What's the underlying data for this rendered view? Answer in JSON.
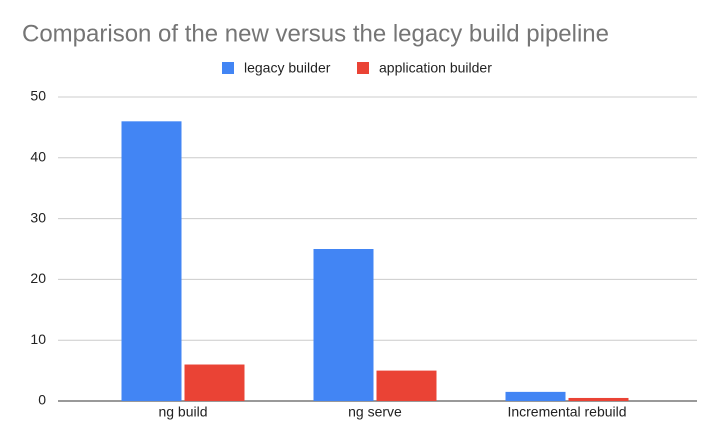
{
  "chart_data": {
    "type": "bar",
    "title": "Comparison of the new versus the legacy build pipeline",
    "categories": [
      "ng build",
      "ng serve",
      "Incremental rebuild"
    ],
    "series": [
      {
        "name": "legacy builder",
        "color": "#4285f4",
        "values": [
          46,
          25,
          1.5
        ]
      },
      {
        "name": "application builder",
        "color": "#ea4335",
        "values": [
          6,
          5,
          0.5
        ]
      }
    ],
    "ylim": [
      0,
      50
    ],
    "yticks": [
      0,
      10,
      20,
      30,
      40,
      50
    ],
    "grid": true,
    "legend": "top"
  }
}
